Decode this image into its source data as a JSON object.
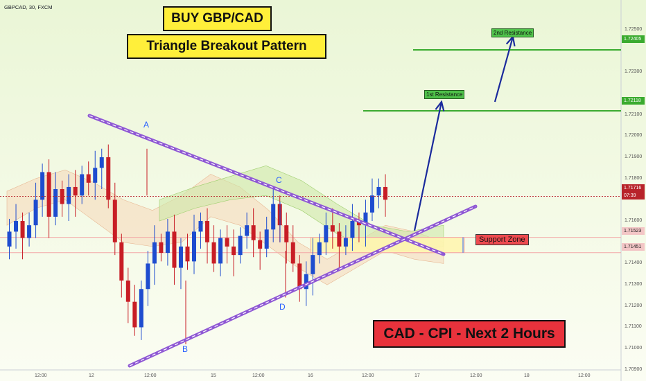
{
  "header": {
    "symbol": "GBPCAD, 30, FXCM"
  },
  "title_box": {
    "line1": "BUY GBP/CAD",
    "line2": "Triangle Breakout Pattern"
  },
  "banner": {
    "text": "CAD - CPI - Next 2 Hours"
  },
  "annotations": {
    "resistance_1_label": "1st Resistance",
    "resistance_2_label": "2nd Resistance",
    "support_zone_label": "Support Zone",
    "point_a": "A",
    "point_b": "B",
    "point_c": "C",
    "point_d": "D"
  },
  "price_tags": {
    "resistance_2": "1.72405",
    "resistance_1": "1.72118",
    "current_price": "1.71716",
    "countdown": "07:39",
    "support_top": "1.71523",
    "support_bottom": "1.71451"
  },
  "colors": {
    "resistance": "#3aab2f",
    "support": "#ee4a4f",
    "trendline": "#8f58d4",
    "arrow": "#1a2a9c",
    "candle_up": "#1e4ccf",
    "candle_down": "#c81d25",
    "title_bg": "#ffef3a",
    "banner_bg": "#e8323c"
  },
  "chart_data": {
    "type": "candlestick",
    "symbol": "GBPCAD",
    "timeframe": "30",
    "ylim": [
      1.7088,
      1.7262
    ],
    "y_ticks": [
      "1.72500",
      "1.72300",
      "1.72100",
      "1.72000",
      "1.71900",
      "1.71800",
      "1.71600",
      "1.71400",
      "1.71300",
      "1.71200",
      "1.71100",
      "1.71000",
      "1.70900"
    ],
    "x_ticks": [
      "12:00",
      "12",
      "12:00",
      "15",
      "12:00",
      "16",
      "12:00",
      "17",
      "12:00",
      "18",
      "12:00"
    ],
    "levels": [
      {
        "name": "2nd Resistance",
        "price": 1.72405
      },
      {
        "name": "1st Resistance",
        "price": 1.72118
      },
      {
        "name": "Current",
        "price": 1.71716
      },
      {
        "name": "Support Zone top",
        "price": 1.71523
      },
      {
        "name": "Support Zone bottom",
        "price": 1.71451
      }
    ],
    "pattern_points": [
      {
        "label": "A",
        "price": 1.7194
      },
      {
        "label": "B",
        "price": 1.7102
      },
      {
        "label": "C",
        "price": 1.7169
      },
      {
        "label": "D",
        "price": 1.7124
      }
    ],
    "close_path": [
      1.7148,
      1.7155,
      1.716,
      1.7152,
      1.7158,
      1.717,
      1.7183,
      1.7162,
      1.7175,
      1.7168,
      1.7176,
      1.7172,
      1.7182,
      1.7178,
      1.7185,
      1.719,
      1.717,
      1.715,
      1.7132,
      1.7122,
      1.711,
      1.7128,
      1.714,
      1.715,
      1.7145,
      1.7155,
      1.7138,
      1.7148,
      1.7141,
      1.7155,
      1.716,
      1.715,
      1.714,
      1.7152,
      1.7148,
      1.7144,
      1.7153,
      1.7158,
      1.7151,
      1.7147,
      1.7156,
      1.7168,
      1.7158,
      1.715,
      1.714,
      1.7128,
      1.7135,
      1.7144,
      1.715,
      1.7158,
      1.7155,
      1.7148,
      1.7152,
      1.716,
      1.7158,
      1.7164,
      1.7172,
      1.7176,
      1.717
    ]
  }
}
